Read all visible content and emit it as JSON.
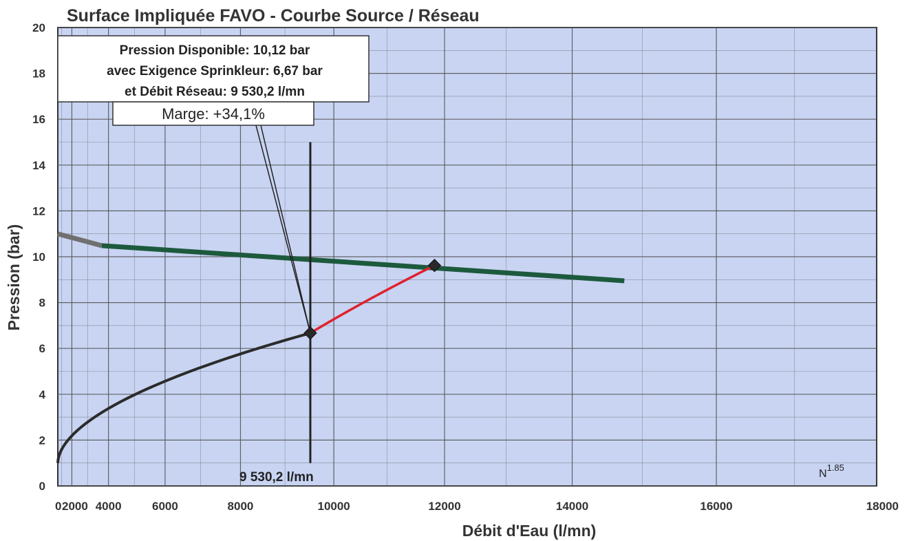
{
  "chart_data": {
    "type": "line",
    "title": "Surface Impliquée FAVO - Courbe Source / Réseau",
    "xlabel": "Débit d'Eau (l/mn)",
    "ylabel": "Pression (bar)",
    "xlim": [
      0,
      18000
    ],
    "ylim": [
      0,
      20
    ],
    "x_scale": "N^1.85",
    "x_scale_label": {
      "base": "N",
      "exponent": "1.85"
    },
    "x_ticks": [
      {
        "value": 0,
        "label": "0"
      },
      {
        "value": 2000,
        "label": "2000"
      },
      {
        "value": 4000,
        "label": "4000"
      },
      {
        "value": 6000,
        "label": "6000"
      },
      {
        "value": 8000,
        "label": "8000"
      },
      {
        "value": 10000,
        "label": "10000"
      },
      {
        "value": 12000,
        "label": "12000"
      },
      {
        "value": 14000,
        "label": "14000"
      },
      {
        "value": 16000,
        "label": "16000"
      },
      {
        "value": 18000,
        "label": "18000"
      }
    ],
    "y_ticks": [
      0,
      2,
      4,
      6,
      8,
      10,
      12,
      14,
      16,
      18,
      20
    ],
    "grid": true,
    "series": [
      {
        "name": "",
        "role": "source",
        "color": "#1d5a3d",
        "points": [
          [
            0,
            11.0
          ],
          [
            14750,
            8.95
          ]
        ],
        "dim_color": "#707070",
        "dim_until": 3700
      },
      {
        "name": "",
        "role": "demand",
        "color": "#2b2b2b",
        "points": [
          [
            0,
            1.0
          ],
          [
            9530.2,
            6.67
          ]
        ]
      },
      {
        "name": "",
        "role": "extension",
        "color": "#e0202e",
        "points": [
          [
            9530.2,
            6.67
          ],
          [
            11830,
            9.62
          ]
        ]
      }
    ],
    "markers": [
      {
        "x": 9530.2,
        "y": 6.67
      },
      {
        "x": 11830,
        "y": 9.62
      }
    ],
    "vertical_line": {
      "x": 9530.2,
      "y_from": 1.0,
      "y_to": 15.0,
      "label": "9  530,2 l/mn"
    },
    "annotation": {
      "lines": [
        "Pression Disponible: 10,12 bar",
        "avec Exigence Sprinkleur: 6,67 bar",
        "et Débit Réseau: 9 530,2 l/mn"
      ],
      "margin": "Marge: +34,1%"
    },
    "colors": {
      "plot_background": "#c8d4f2",
      "grid": "#555555",
      "source_curve": "#1d5a3d",
      "demand_curve": "#2b2b2b",
      "extension_curve": "#e0202e"
    }
  }
}
